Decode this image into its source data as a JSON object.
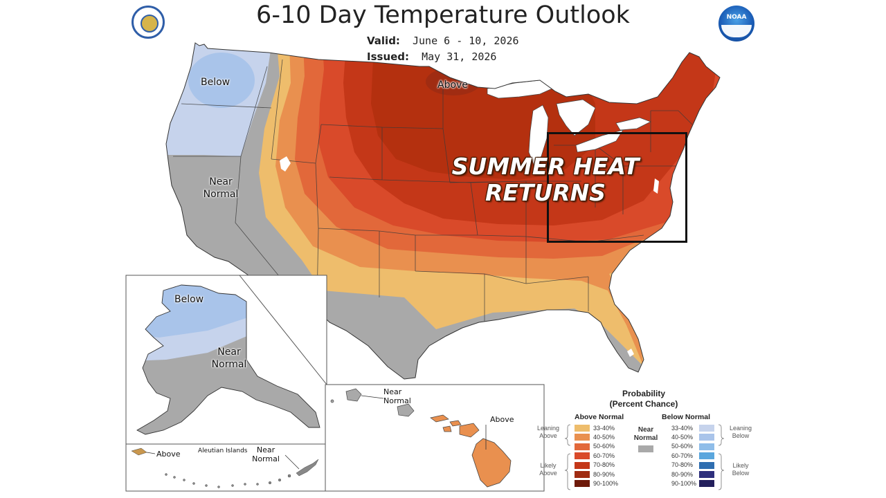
{
  "header": {
    "title": "6-10 Day Temperature Outlook",
    "valid_label": "Valid:",
    "valid_value": "June 6 - 10, 2026",
    "issued_label": "Issued:",
    "issued_value": "May 31, 2026"
  },
  "logos": {
    "left": "department-seal-icon",
    "right": "noaa-logo-icon",
    "right_text": "NOAA"
  },
  "headline": {
    "line1": "SUMMER HEAT",
    "line2": "RETURNS"
  },
  "conus_labels": {
    "below": "Below",
    "above": "Above",
    "near_line1": "Near",
    "near_line2": "Normal"
  },
  "alaska_labels": {
    "below": "Below",
    "near_line1": "Near",
    "near_line2": "Normal",
    "above": "Above",
    "aleutian": "Aleutian Islands",
    "near2_line1": "Near",
    "near2_line2": "Normal"
  },
  "hawaii_labels": {
    "near_line1": "Near",
    "near_line2": "Normal",
    "above": "Above"
  },
  "legend": {
    "title_line1": "Probability",
    "title_line2": "(Percent Chance)",
    "above_header": "Above Normal",
    "below_header": "Below Normal",
    "near_line1": "Near",
    "near_line2": "Normal",
    "leaning_above_1": "Leaning",
    "leaning_above_2": "Above",
    "likely_above_1": "Likely",
    "likely_above_2": "Above",
    "leaning_below_1": "Leaning",
    "leaning_below_2": "Below",
    "likely_below_1": "Likely",
    "likely_below_2": "Below",
    "ranges": [
      "33-40%",
      "40-50%",
      "50-60%",
      "60-70%",
      "70-80%",
      "80-90%",
      "90-100%"
    ],
    "above_colors": [
      "#eebd6c",
      "#e9904f",
      "#e2683a",
      "#d94a2a",
      "#c43718",
      "#a02c12",
      "#6e1a0a"
    ],
    "below_colors": [
      "#c6d3ec",
      "#a9c4ea",
      "#8fbde9",
      "#5aa6dd",
      "#2f6eb0",
      "#2e2f7c",
      "#231f5c"
    ],
    "near_color": "#a9a9a9"
  },
  "colors": {
    "near_normal": "#a9a9a9",
    "water": "#ffffff",
    "borders": "#3a3a3a"
  }
}
